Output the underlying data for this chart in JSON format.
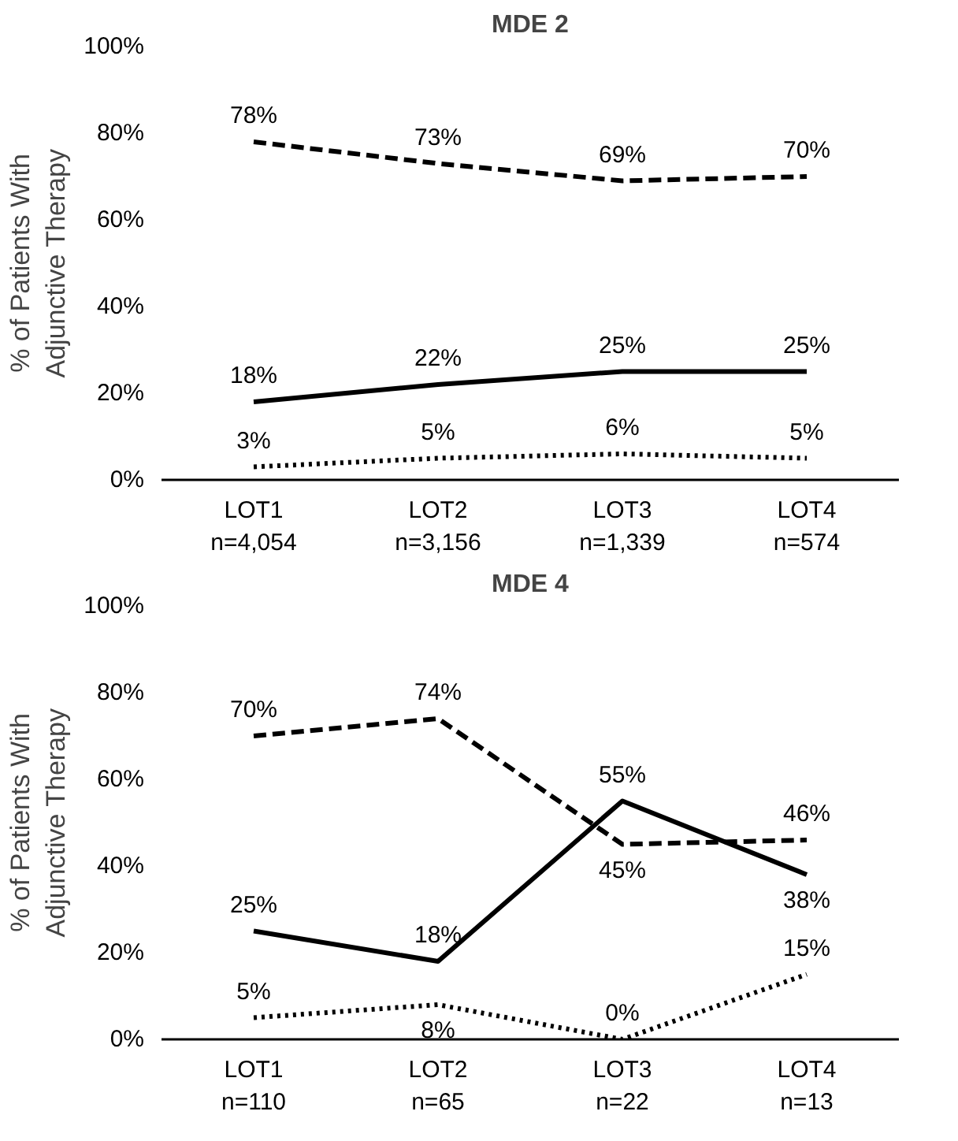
{
  "chart_data": [
    {
      "type": "line",
      "title": "MDE 2",
      "ylabel": "% of Patients With\nAdjunctive Therapy",
      "categories": [
        "LOT1\nn=4,054",
        "LOT2\nn=3,156",
        "LOT3\nn=1,339",
        "LOT4\nn=574"
      ],
      "series": [
        {
          "color": "#000000",
          "line_style": "dashed",
          "values": [
            78,
            73,
            69,
            70
          ]
        },
        {
          "color": "#000000",
          "line_style": "solid",
          "values": [
            18,
            22,
            25,
            25
          ]
        },
        {
          "color": "#000000",
          "line_style": "dotted",
          "values": [
            3,
            5,
            6,
            5
          ]
        }
      ],
      "ylim": [
        0,
        100
      ],
      "yticks": [
        {
          "value": 0,
          "label": "0%"
        },
        {
          "value": 20,
          "label": "20%"
        },
        {
          "value": 40,
          "label": "40%"
        },
        {
          "value": 60,
          "label": "60%"
        },
        {
          "value": 80,
          "label": "80%"
        },
        {
          "value": 100,
          "label": "100%"
        }
      ],
      "value_labels": [
        [
          "78%",
          "73%",
          "69%",
          "70%"
        ],
        [
          "18%",
          "22%",
          "25%",
          "25%"
        ],
        [
          "3%",
          "5%",
          "6%",
          "5%"
        ]
      ],
      "grid": false,
      "marker": "none"
    },
    {
      "type": "line",
      "title": "MDE 4",
      "ylabel": "% of Patients With\nAdjunctive Therapy",
      "categories": [
        "LOT1\nn=110",
        "LOT2\nn=65",
        "LOT3\nn=22",
        "LOT4\nn=13"
      ],
      "series": [
        {
          "color": "#000000",
          "line_style": "dashed",
          "values": [
            70,
            74,
            45,
            46
          ]
        },
        {
          "color": "#000000",
          "line_style": "solid",
          "values": [
            25,
            18,
            55,
            38
          ]
        },
        {
          "color": "#000000",
          "line_style": "dotted",
          "values": [
            5,
            8,
            0,
            15
          ]
        }
      ],
      "ylim": [
        0,
        100
      ],
      "yticks": [
        {
          "value": 0,
          "label": "0%"
        },
        {
          "value": 20,
          "label": "20%"
        },
        {
          "value": 40,
          "label": "40%"
        },
        {
          "value": 60,
          "label": "60%"
        },
        {
          "value": 80,
          "label": "80%"
        },
        {
          "value": 100,
          "label": "100%"
        }
      ],
      "value_labels": [
        [
          "70%",
          "74%",
          "45%",
          "46%"
        ],
        [
          "25%",
          "18%",
          "55%",
          "38%"
        ],
        [
          "5%",
          "8%",
          "0%",
          "15%"
        ]
      ],
      "grid": false,
      "marker": "none"
    }
  ]
}
